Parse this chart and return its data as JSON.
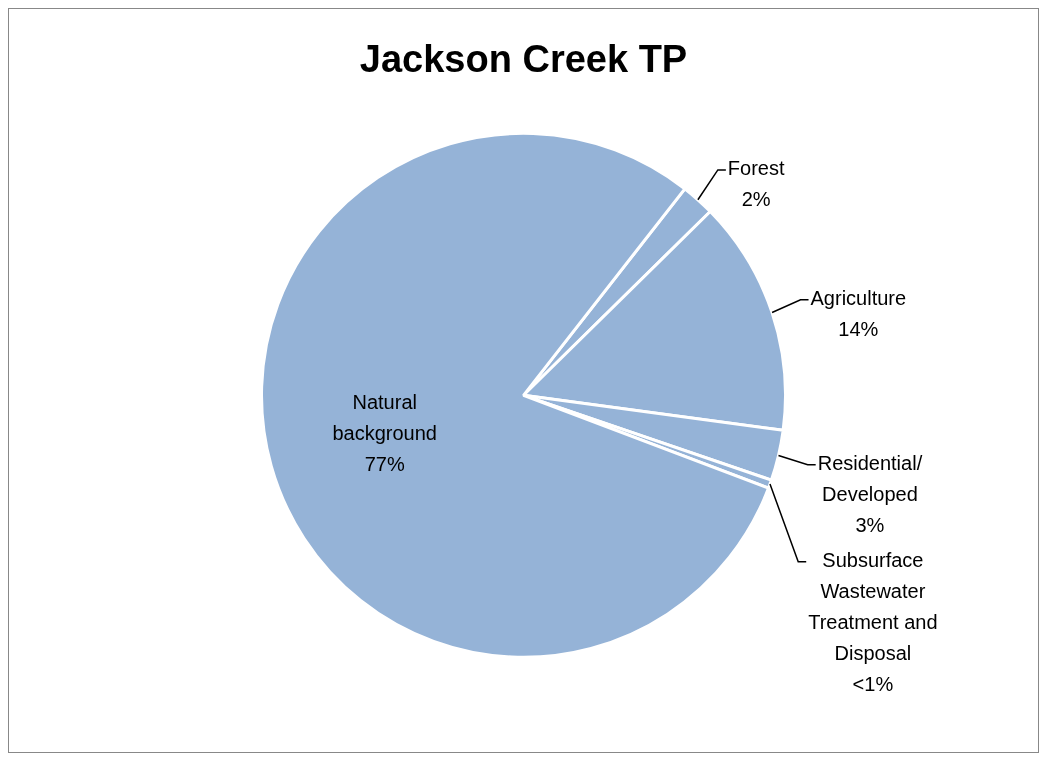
{
  "chart_data": {
    "type": "pie",
    "title": "Jackson Creek TP",
    "categories": [
      "Forest",
      "Agriculture",
      "Residential/ Developed",
      "Subsurface Wastewater Treatment and Disposal",
      "Natural background"
    ],
    "values": [
      2,
      14,
      3,
      0.5,
      77
    ],
    "value_labels": [
      "2%",
      "14%",
      "3%",
      "<1%",
      "77%"
    ],
    "colors": [
      "#95b3d7",
      "#95b3d7",
      "#95b3d7",
      "#95b3d7",
      "#95b3d7"
    ],
    "legend": false
  }
}
